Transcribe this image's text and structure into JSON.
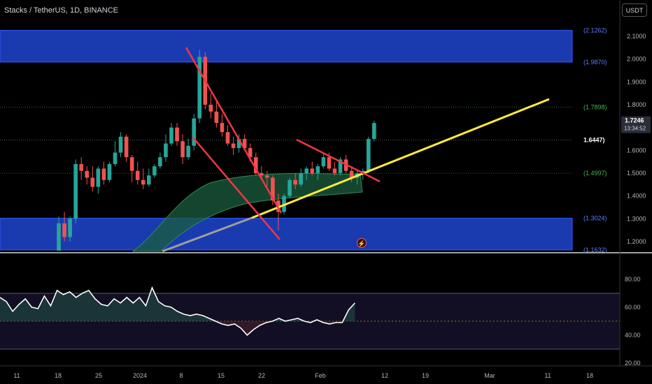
{
  "header": {
    "symbol_title": "Stacks / TetherUS, 1D, BINANCE",
    "currency_button": "USDT"
  },
  "price_axis": {
    "ticks": [
      "2.1000",
      "2.0000",
      "1.9000",
      "1.8000",
      "1.7000",
      "1.6000",
      "1.5000",
      "1.4000",
      "1.3000",
      "1.2000"
    ],
    "last_price": "1.7246",
    "countdown": "13:34:52"
  },
  "levels": [
    {
      "label": "(2.1262)",
      "value": 2.1262,
      "color": "#2962ff"
    },
    {
      "label": "(1.9870)",
      "value": 1.987,
      "color": "#2962ff"
    },
    {
      "label": "(1.7898)",
      "value": 1.7898,
      "color": "#4caf50"
    },
    {
      "label": "1.6447)",
      "value": 1.6447,
      "color": "#ffffff"
    },
    {
      "label": "(1.4997)",
      "value": 1.4997,
      "color": "#4caf50"
    },
    {
      "label": "(1.3024)",
      "value": 1.3024,
      "color": "#2962ff"
    },
    {
      "label": "(1.1632)",
      "value": 1.1632,
      "color": "#2962ff"
    }
  ],
  "rsi_axis": {
    "ticks": [
      "80.00",
      "60.00",
      "40.00",
      "20.00"
    ]
  },
  "time_axis": {
    "ticks": [
      "11",
      "18",
      "25",
      "2024",
      "8",
      "15",
      "22",
      "Feb",
      "12",
      "19",
      "Mar",
      "11",
      "18"
    ]
  },
  "colors": {
    "up": "#26a69a",
    "down": "#ef5350",
    "zone": "#1a3bb0",
    "trendline": "#ffeb3b",
    "wedge": "#f23645",
    "ema_cloud": "#1b5e3f"
  },
  "icons": {
    "alert": "lightning-icon"
  },
  "chart_data": {
    "type": "candlestick",
    "candles": [
      [
        1.16,
        1.31,
        1.16,
        1.28
      ],
      [
        1.28,
        1.33,
        1.2,
        1.22
      ],
      [
        1.22,
        1.31,
        1.2,
        1.3
      ],
      [
        1.3,
        1.56,
        1.28,
        1.54
      ],
      [
        1.54,
        1.57,
        1.47,
        1.51
      ],
      [
        1.51,
        1.53,
        1.45,
        1.48
      ],
      [
        1.48,
        1.53,
        1.42,
        1.44
      ],
      [
        1.44,
        1.53,
        1.41,
        1.52
      ],
      [
        1.52,
        1.55,
        1.45,
        1.47
      ],
      [
        1.47,
        1.55,
        1.46,
        1.54
      ],
      [
        1.54,
        1.64,
        1.53,
        1.59
      ],
      [
        1.59,
        1.68,
        1.57,
        1.66
      ],
      [
        1.66,
        1.67,
        1.55,
        1.57
      ],
      [
        1.57,
        1.58,
        1.46,
        1.51
      ],
      [
        1.51,
        1.55,
        1.45,
        1.47
      ],
      [
        1.47,
        1.52,
        1.43,
        1.45
      ],
      [
        1.45,
        1.52,
        1.44,
        1.49
      ],
      [
        1.49,
        1.54,
        1.48,
        1.53
      ],
      [
        1.53,
        1.59,
        1.52,
        1.57
      ],
      [
        1.57,
        1.67,
        1.55,
        1.63
      ],
      [
        1.63,
        1.72,
        1.62,
        1.7
      ],
      [
        1.7,
        1.72,
        1.62,
        1.64
      ],
      [
        1.64,
        1.67,
        1.54,
        1.57
      ],
      [
        1.57,
        1.65,
        1.56,
        1.62
      ],
      [
        1.62,
        1.76,
        1.6,
        1.74
      ],
      [
        1.74,
        2.04,
        1.72,
        2.01
      ],
      [
        2.01,
        2.03,
        1.78,
        1.8
      ],
      [
        1.8,
        1.85,
        1.74,
        1.77
      ],
      [
        1.77,
        1.82,
        1.7,
        1.72
      ],
      [
        1.72,
        1.76,
        1.66,
        1.68
      ],
      [
        1.68,
        1.71,
        1.62,
        1.63
      ],
      [
        1.63,
        1.66,
        1.58,
        1.61
      ],
      [
        1.61,
        1.67,
        1.59,
        1.65
      ],
      [
        1.65,
        1.67,
        1.6,
        1.61
      ],
      [
        1.61,
        1.63,
        1.55,
        1.57
      ],
      [
        1.57,
        1.59,
        1.49,
        1.5
      ],
      [
        1.5,
        1.53,
        1.47,
        1.49
      ],
      [
        1.49,
        1.51,
        1.44,
        1.48
      ],
      [
        1.48,
        1.49,
        1.36,
        1.38
      ],
      [
        1.38,
        1.41,
        1.25,
        1.33
      ],
      [
        1.33,
        1.41,
        1.32,
        1.4
      ],
      [
        1.4,
        1.48,
        1.39,
        1.47
      ],
      [
        1.47,
        1.5,
        1.43,
        1.45
      ],
      [
        1.45,
        1.52,
        1.44,
        1.5
      ],
      [
        1.5,
        1.53,
        1.47,
        1.52
      ],
      [
        1.52,
        1.55,
        1.49,
        1.5
      ],
      [
        1.5,
        1.54,
        1.47,
        1.53
      ],
      [
        1.53,
        1.59,
        1.52,
        1.57
      ],
      [
        1.57,
        1.59,
        1.51,
        1.52
      ],
      [
        1.52,
        1.55,
        1.49,
        1.5
      ],
      [
        1.5,
        1.57,
        1.49,
        1.56
      ],
      [
        1.56,
        1.58,
        1.5,
        1.51
      ],
      [
        1.51,
        1.53,
        1.46,
        1.48
      ],
      [
        1.48,
        1.51,
        1.45,
        1.5
      ],
      [
        1.5,
        1.52,
        1.47,
        1.51
      ],
      [
        1.51,
        1.66,
        1.5,
        1.65
      ],
      [
        1.65,
        1.73,
        1.64,
        1.72
      ]
    ],
    "rsi": [
      67,
      64,
      57,
      62,
      66,
      60,
      59,
      68,
      61,
      72,
      69,
      71,
      67,
      70,
      72,
      66,
      62,
      61,
      66,
      63,
      67,
      63,
      67,
      61,
      74,
      64,
      61,
      60,
      57,
      55,
      54,
      55,
      54,
      52,
      50,
      48,
      47,
      48,
      45,
      40,
      44,
      47,
      49,
      50,
      52,
      50,
      51,
      52,
      50,
      49,
      51,
      49,
      48,
      49,
      49,
      58,
      63
    ],
    "rsi_range": [
      0,
      100
    ],
    "rsi_band": [
      30,
      70
    ],
    "rsi_mid": 50,
    "price_range": [
      1.15,
      2.17
    ]
  }
}
